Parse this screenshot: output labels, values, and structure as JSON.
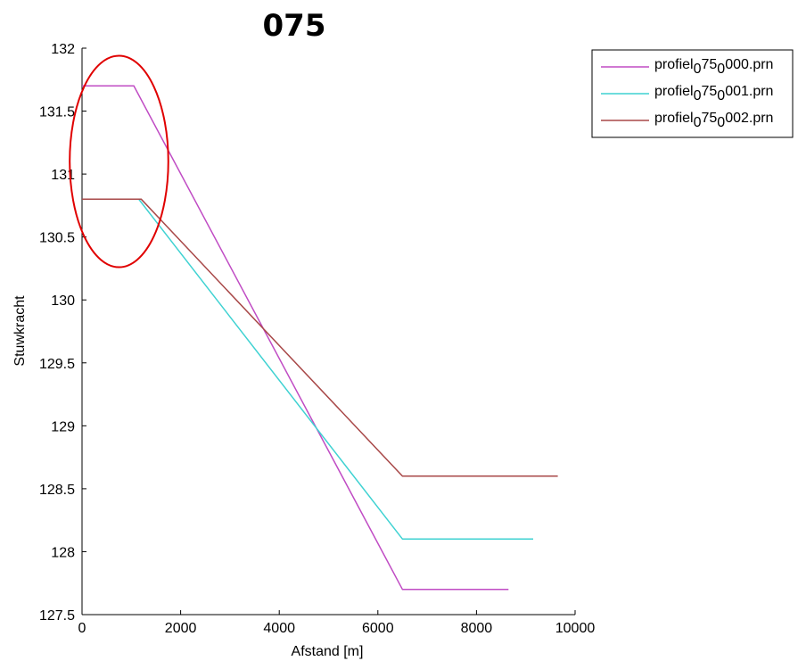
{
  "chart_data": {
    "type": "line",
    "title": "075",
    "xlabel": "Afstand [m]",
    "ylabel": "Stuwkracht",
    "xlim": [
      0,
      10000
    ],
    "ylim": [
      127.5,
      132
    ],
    "xticks": [
      0,
      2000,
      4000,
      6000,
      8000,
      10000
    ],
    "xtick_labels": [
      "0",
      "2000",
      "4000",
      "6000",
      "8000",
      "10000"
    ],
    "yticks": [
      127.5,
      128,
      128.5,
      129,
      129.5,
      130,
      130.5,
      131,
      131.5,
      132
    ],
    "ytick_labels": [
      "127.5",
      "128",
      "128.5",
      "129",
      "129.5",
      "130",
      "130.5",
      "131",
      "131.5",
      "132"
    ],
    "grid": false,
    "legend_position": "top-right, outside plot",
    "series": [
      {
        "legend": {
          "base": "profiel",
          "sub1": "0",
          "mid": "75",
          "sub2": "0",
          "tail": "000.prn"
        },
        "color": "#c04cc4",
        "x": [
          0,
          1050,
          6500,
          8650
        ],
        "y": [
          131.7,
          131.7,
          127.7,
          127.7
        ]
      },
      {
        "legend": {
          "base": "profiel",
          "sub1": "0",
          "mid": "75",
          "sub2": "0",
          "tail": "001.prn"
        },
        "color": "#3fd2d2",
        "x": [
          0,
          1150,
          6500,
          9150
        ],
        "y": [
          130.8,
          130.8,
          128.1,
          128.1
        ]
      },
      {
        "legend": {
          "base": "profiel",
          "sub1": "0",
          "mid": "75",
          "sub2": "0",
          "tail": "002.prn"
        },
        "color": "#a84848",
        "x": [
          0,
          1200,
          6500,
          9650
        ],
        "y": [
          130.8,
          130.8,
          128.6,
          128.6
        ]
      }
    ],
    "annotations": [
      {
        "type": "ellipse",
        "color": "#e00000",
        "cx": 750,
        "cy": 131.1,
        "rx": 1000,
        "ry": 0.84
      }
    ]
  }
}
